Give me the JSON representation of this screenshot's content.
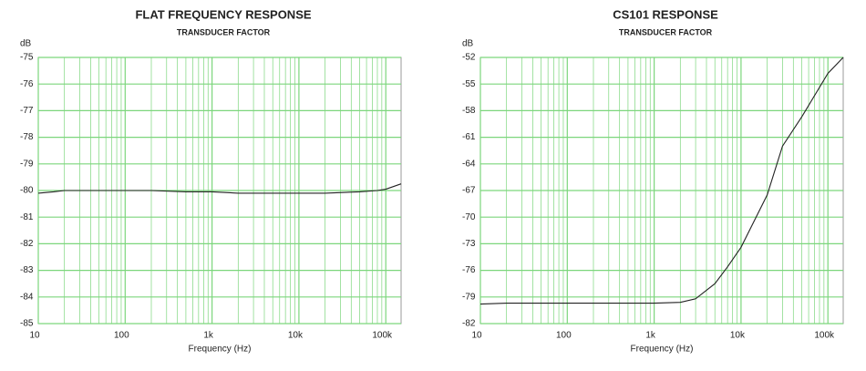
{
  "chart_data": [
    {
      "type": "line",
      "title": "FLAT FREQUENCY RESPONSE",
      "subtitle": "TRANSDUCER FACTOR",
      "y_label": "dB",
      "x_label": "Frequency (Hz)",
      "log_x": true,
      "grid": true,
      "grid_color": "#7cd67c",
      "xlim": [
        10,
        150000
      ],
      "xticks": [
        10,
        100,
        {
          "value": 1000,
          "label": "1k"
        },
        {
          "value": 10000,
          "label": "10k"
        },
        {
          "value": 100000,
          "label": "100k"
        }
      ],
      "ylim": [
        -85,
        -75
      ],
      "yticks": [
        -85,
        -84,
        -83,
        -82,
        -81,
        -80,
        -79,
        -78,
        -77,
        -76,
        -75
      ],
      "x": [
        10,
        15,
        20,
        30,
        50,
        100,
        200,
        500,
        1000,
        2000,
        5000,
        10000,
        20000,
        50000,
        80000,
        100000,
        150000
      ],
      "series": [
        {
          "color": "#222222",
          "values": [
            -80.1,
            -80.05,
            -80.0,
            -80.0,
            -80.0,
            -80.0,
            -80.0,
            -80.05,
            -80.05,
            -80.1,
            -80.1,
            -80.1,
            -80.1,
            -80.05,
            -80.0,
            -79.95,
            -79.75
          ]
        }
      ]
    },
    {
      "type": "line",
      "title": "CS101 RESPONSE",
      "subtitle": "TRANSDUCER FACTOR",
      "y_label": "dB",
      "x_label": "Frequency (Hz)",
      "log_x": true,
      "grid": true,
      "grid_color": "#7cd67c",
      "xlim": [
        10,
        150000
      ],
      "xticks": [
        10,
        100,
        {
          "value": 1000,
          "label": "1k"
        },
        {
          "value": 10000,
          "label": "10k"
        },
        {
          "value": 100000,
          "label": "100k"
        }
      ],
      "ylim": [
        -82,
        -52
      ],
      "yticks": [
        -82,
        -79,
        -76,
        -73,
        -70,
        -67,
        -64,
        -61,
        -58,
        -55,
        -52
      ],
      "x": [
        10,
        20,
        50,
        100,
        300,
        1000,
        2000,
        3000,
        5000,
        7000,
        10000,
        20000,
        30000,
        50000,
        100000,
        150000
      ],
      "series": [
        {
          "color": "#222222",
          "values": [
            -79.8,
            -79.7,
            -79.7,
            -79.7,
            -79.7,
            -79.7,
            -79.6,
            -79.2,
            -77.5,
            -75.6,
            -73.4,
            -67.5,
            -62.0,
            -58.7,
            -53.8,
            -52.0
          ]
        }
      ]
    }
  ]
}
